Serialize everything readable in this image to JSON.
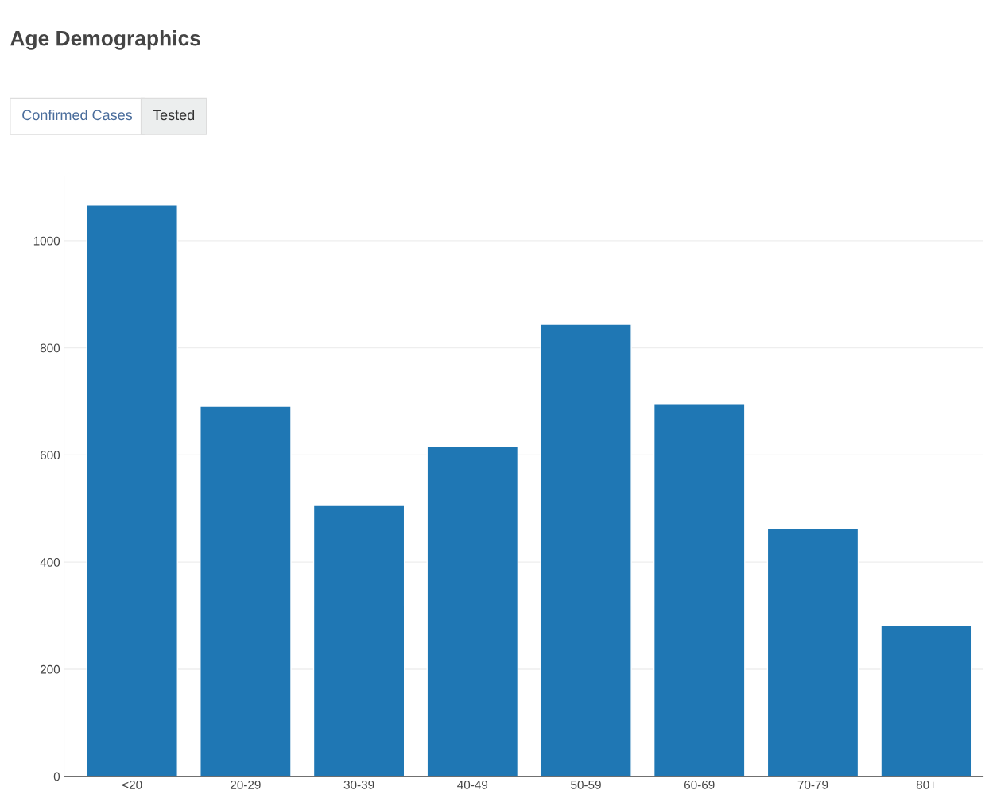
{
  "chart_data": {
    "type": "bar",
    "title": "Age Demographics",
    "annotations": [
      "Confirmed Cases",
      "Tested"
    ],
    "categories": [
      "<20",
      "20-29",
      "30-39",
      "40-49",
      "50-59",
      "60-69",
      "70-79",
      "80+"
    ],
    "values": [
      1067,
      691,
      507,
      616,
      844,
      696,
      463,
      282
    ],
    "color": "#1f77b4",
    "ylim": [
      0,
      1120
    ],
    "yticks": [
      0,
      200,
      400,
      600,
      800,
      1000
    ],
    "grid": "y"
  }
}
